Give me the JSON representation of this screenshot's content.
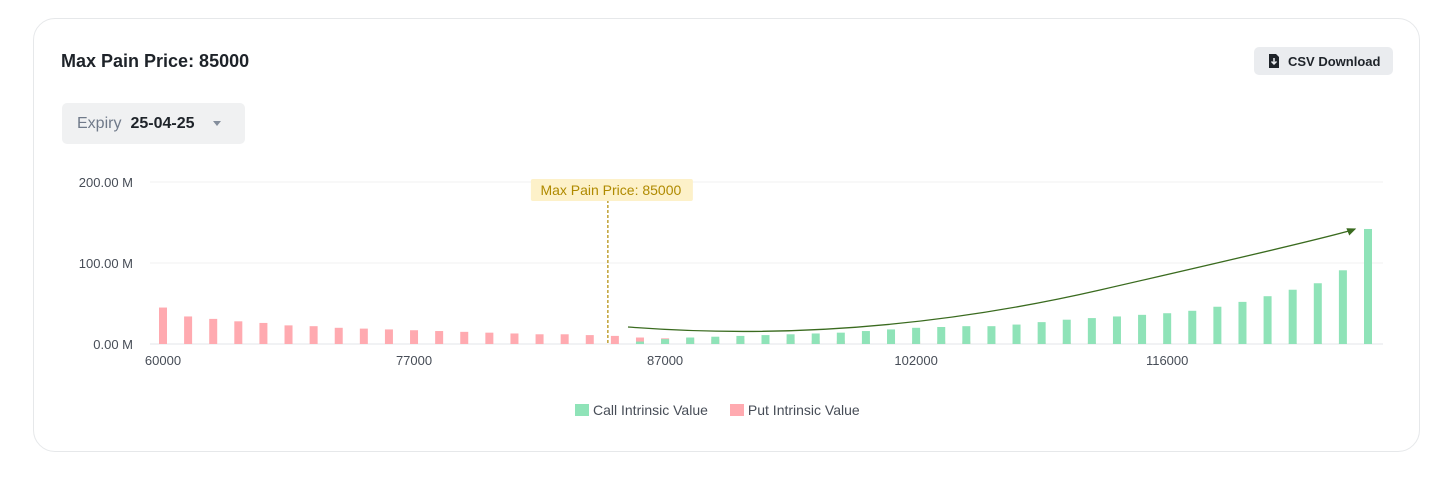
{
  "header": {
    "title": "Max Pain Price: 85000",
    "csv_label": "CSV Download"
  },
  "expiry": {
    "label": "Expiry",
    "value": "25-04-25"
  },
  "colors": {
    "call": "#8fe3b8",
    "put": "#ffaab0",
    "annotation_bg": "#fdf1c9",
    "annotation_text": "#b08a00",
    "trend": "#3a6b1f"
  },
  "chart_data": {
    "type": "bar",
    "y_ticks": [
      "200.00 M",
      "100.00 M",
      "0.00 M"
    ],
    "ylim": [
      0,
      200
    ],
    "x_tick_labels": [
      {
        "index": 0,
        "label": "60000"
      },
      {
        "index": 10,
        "label": "77000"
      },
      {
        "index": 20,
        "label": "87000"
      },
      {
        "index": 30,
        "label": "102000"
      },
      {
        "index": 40,
        "label": "116000"
      }
    ],
    "series": [
      {
        "name": "Call Intrinsic Value",
        "color": "#8fe3b8",
        "values": [
          0,
          0,
          0,
          0,
          0,
          0,
          0,
          0,
          0,
          0,
          0,
          0,
          0,
          0,
          0,
          0,
          0,
          0,
          0,
          3,
          6,
          8,
          9,
          10,
          11,
          12,
          13,
          14,
          16,
          18,
          20,
          21,
          22,
          22,
          24,
          27,
          30,
          32,
          34,
          36,
          38,
          41,
          46,
          52,
          59,
          67,
          75,
          91,
          142
        ]
      },
      {
        "name": "Put Intrinsic Value",
        "color": "#ffaab0",
        "values": [
          45,
          34,
          31,
          28,
          26,
          23,
          22,
          20,
          19,
          18,
          17,
          16,
          15,
          14,
          13,
          12,
          12,
          11,
          10,
          8,
          7,
          7,
          6,
          6,
          5,
          5,
          4,
          4,
          3,
          3,
          3,
          3,
          3,
          2,
          2,
          2,
          2,
          2,
          2,
          2,
          1,
          1,
          1,
          1,
          1,
          1,
          1,
          1,
          1
        ]
      }
    ],
    "annotation": {
      "label": "Max Pain Price: 85000",
      "index": 18
    },
    "trend_arrow": true,
    "grid": true,
    "legend_position": "bottom-center"
  }
}
